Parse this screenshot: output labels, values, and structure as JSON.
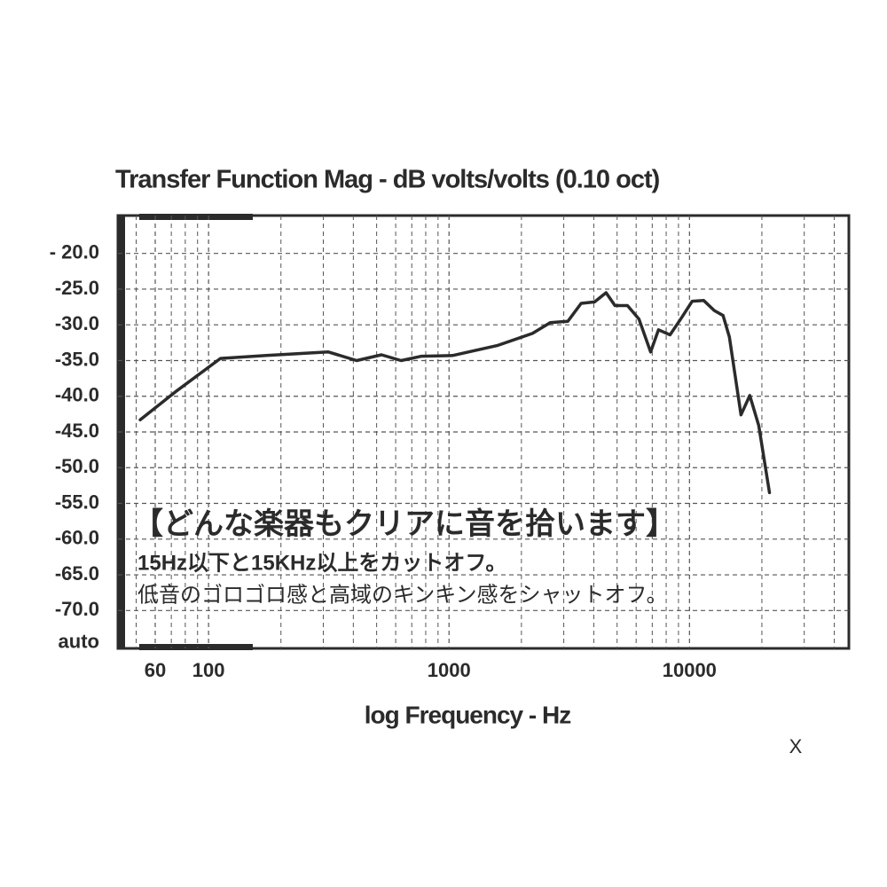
{
  "chart_data": {
    "type": "line",
    "log_x": true,
    "grid": true,
    "color": "#2b2b2b",
    "title": "Transfer Function Mag - dB volts/volts (0.10 oct)",
    "x_label": "log Frequency - Hz",
    "xlim": [
      42,
      46000
    ],
    "ylim": [
      -14.7,
      -75.3
    ],
    "xticks": [
      60,
      100,
      1000,
      10000
    ],
    "xgrid_minor": [
      50,
      70,
      80,
      90,
      200,
      300,
      400,
      500,
      600,
      700,
      800,
      900,
      2000,
      3000,
      4000,
      5000,
      6000,
      7000,
      8000,
      9000,
      20000,
      30000,
      40000
    ],
    "yticks": [
      {
        "value": -20,
        "label": "- 20.0"
      },
      {
        "value": -25,
        "label": "-25.0"
      },
      {
        "value": -30,
        "label": "-30.0"
      },
      {
        "value": -35,
        "label": "-35.0"
      },
      {
        "value": -40,
        "label": "-40.0"
      },
      {
        "value": -45,
        "label": "-45.0"
      },
      {
        "value": -50,
        "label": "-50.0"
      },
      {
        "value": -55,
        "label": "-55.0"
      },
      {
        "value": -60,
        "label": "-60.0"
      },
      {
        "value": -65,
        "label": "-65.0"
      },
      {
        "value": -70,
        "label": "-70.0"
      },
      {
        "value": -74.5,
        "label": "auto"
      }
    ],
    "x": [
      52,
      74,
      112,
      174,
      315,
      413,
      524,
      632,
      769,
      1035,
      1585,
      2223,
      2635,
      3120,
      3545,
      4030,
      4500,
      4900,
      5520,
      6165,
      6890,
      7430,
      8300,
      9270,
      10260,
      11460,
      12680,
      13800,
      14650,
      16370,
      17820,
      19400,
      21500
    ],
    "values": [
      -43.3,
      -39.2,
      -34.7,
      -34.3,
      -33.8,
      -35.0,
      -34.2,
      -35.0,
      -34.4,
      -34.3,
      -32.9,
      -31.2,
      -29.7,
      -29.5,
      -27.0,
      -26.8,
      -25.5,
      -27.3,
      -27.3,
      -29.2,
      -33.8,
      -30.7,
      -31.4,
      -29.0,
      -26.7,
      -26.6,
      -28.0,
      -28.7,
      -31.7,
      -42.6,
      -39.9,
      -44.1,
      -53.5
    ],
    "annotations": [
      "【どんな楽器もクリアに音を拾います】",
      "15Hz以下と15KHz以上をカットオフ。",
      "低音のゴロゴロ感と高域のキンキン感をシャットオフ。"
    ]
  },
  "close_button": "X"
}
